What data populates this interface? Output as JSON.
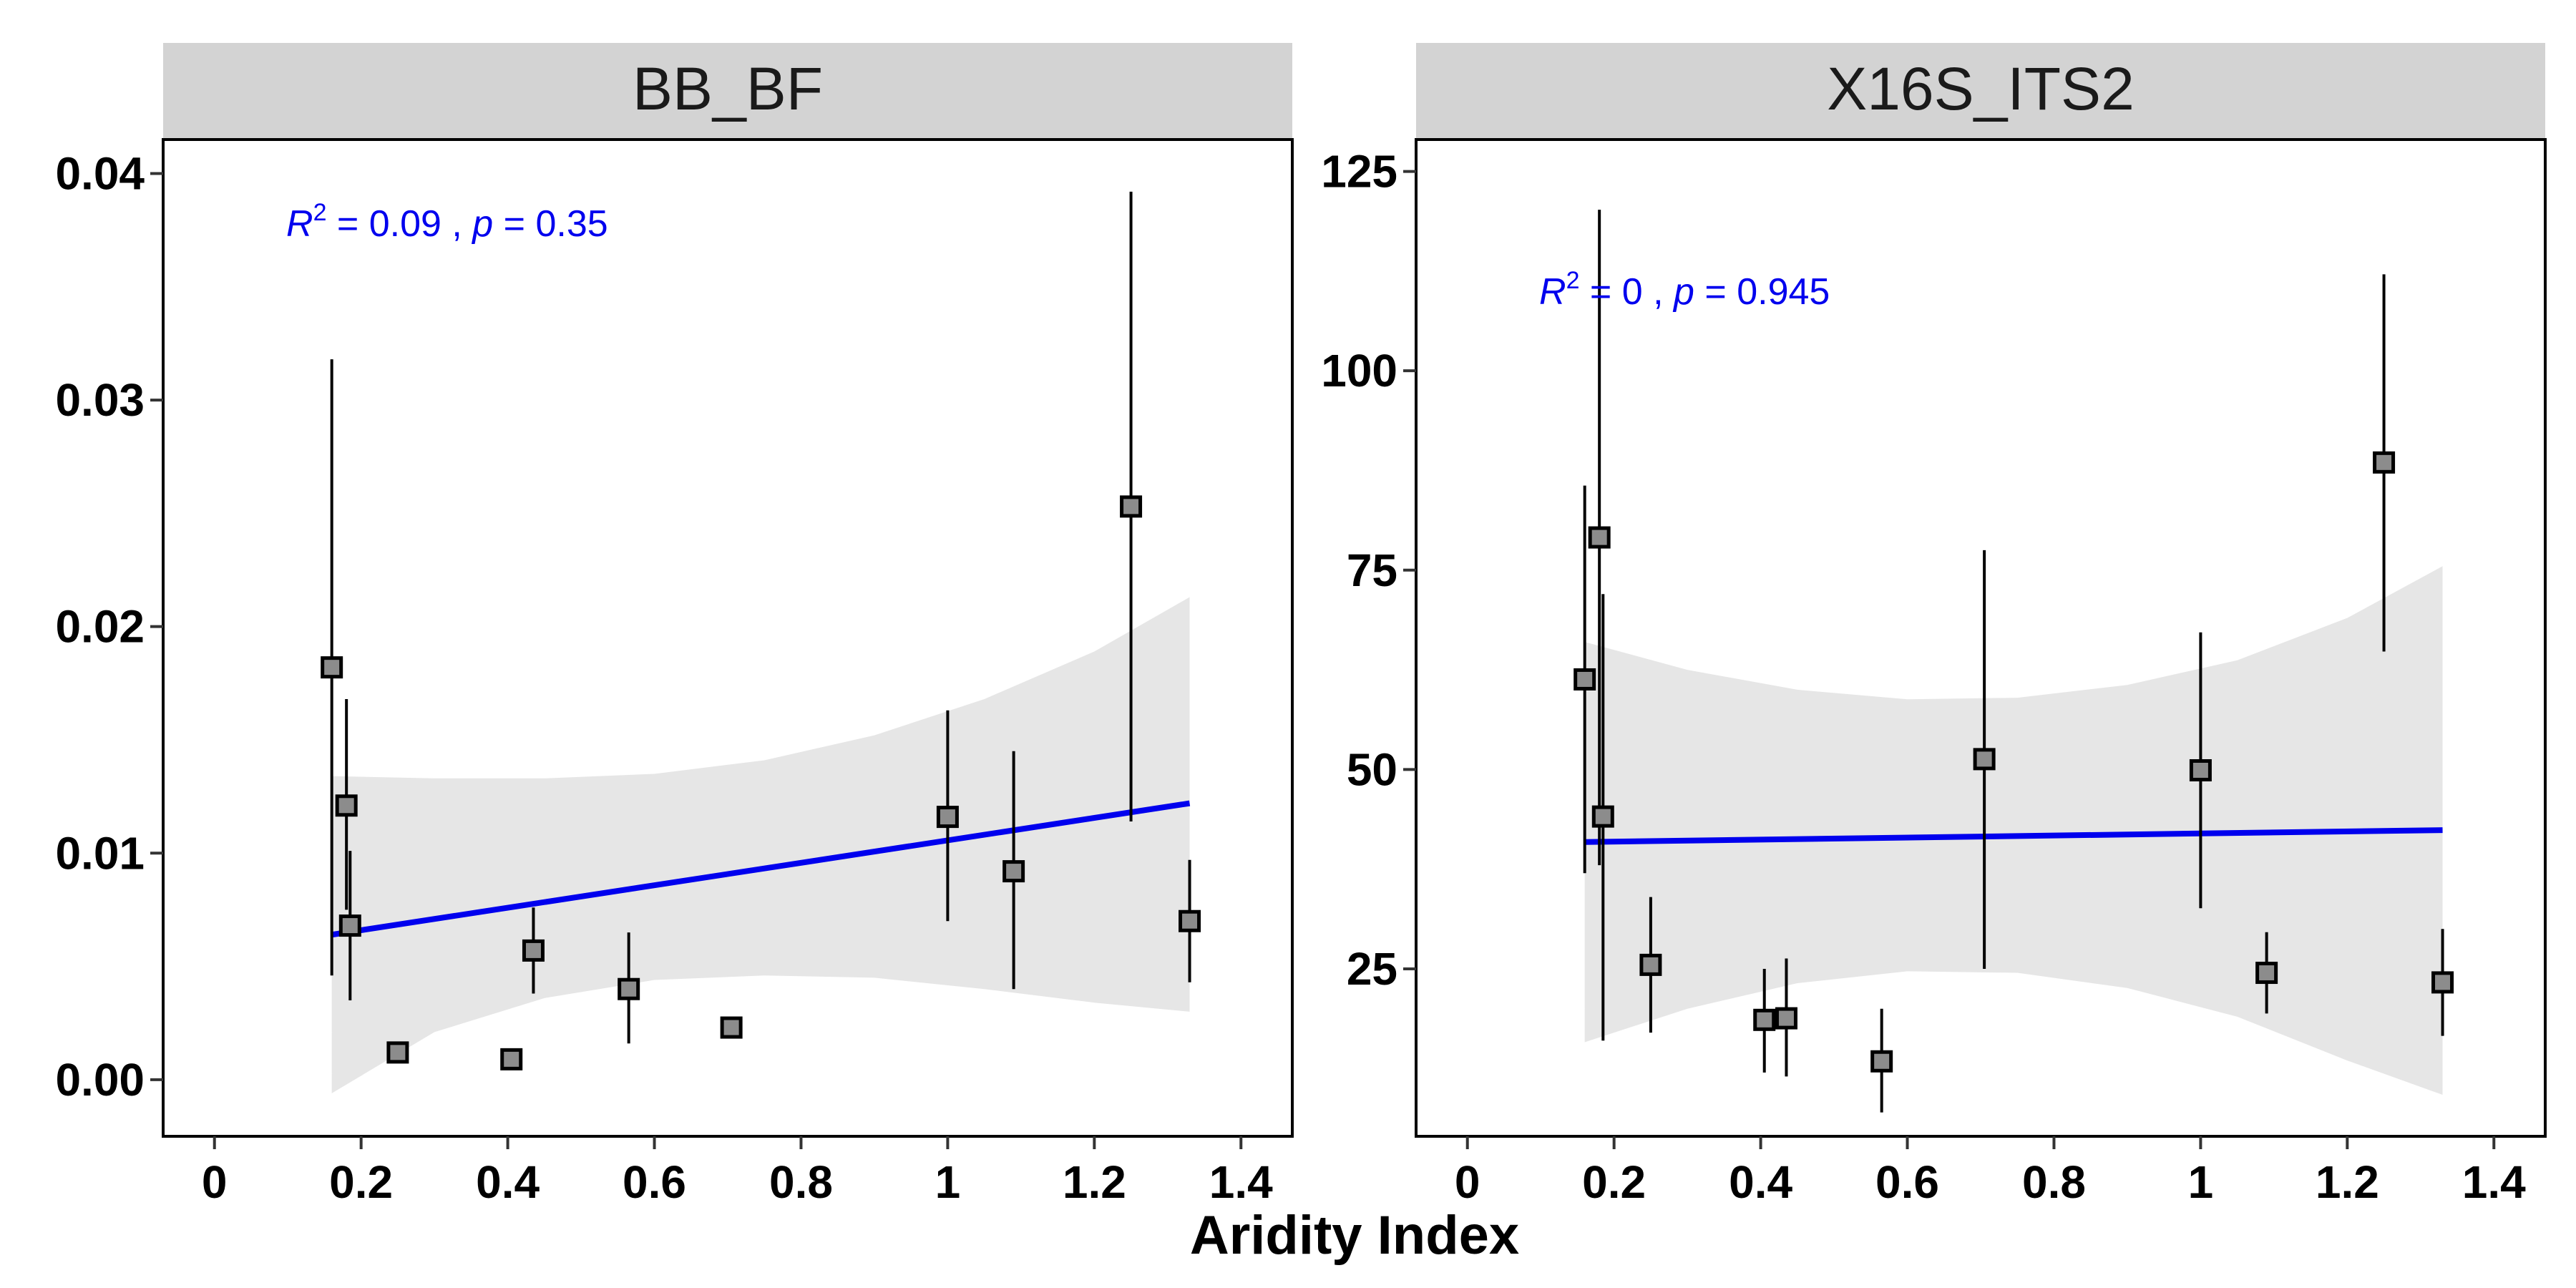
{
  "figure": {
    "xlabel": "Aridity Index",
    "fit_color": "#0000ee",
    "band_color": "#e6e6e6",
    "strip_color": "#d3d3d3",
    "point_fill": "#8c8c8c"
  },
  "chart_data": [
    {
      "type": "scatter",
      "panel": "BB_BF",
      "xlim": [
        -0.07,
        1.47
      ],
      "ylim": [
        -0.0025,
        0.0415
      ],
      "xticks": [
        0,
        0.2,
        0.4,
        0.6,
        0.8,
        1,
        1.2,
        1.4
      ],
      "xtick_labels": [
        "0",
        "0.2",
        "0.4",
        "0.6",
        "0.8",
        "1",
        "1.2",
        "1.4"
      ],
      "yticks": [
        0.0,
        0.01,
        0.02,
        0.03,
        0.04
      ],
      "ytick_labels": [
        "0.00",
        "0.01",
        "0.02",
        "0.03",
        "0.04"
      ],
      "annotation": {
        "r2_label": "R",
        "sup": "2",
        "r2_value": " = 0.09 , ",
        "p_label": "p",
        "p_value": " = 0.35"
      },
      "points": [
        {
          "x": 0.16,
          "y": 0.0182,
          "lo": 0.0046,
          "hi": 0.0318
        },
        {
          "x": 0.18,
          "y": 0.0121,
          "lo": 0.0075,
          "hi": 0.0168
        },
        {
          "x": 0.185,
          "y": 0.0068,
          "lo": 0.0035,
          "hi": 0.0101
        },
        {
          "x": 0.25,
          "y": 0.0012,
          "lo": 0.0012,
          "hi": 0.0012
        },
        {
          "x": 0.405,
          "y": 0.0009,
          "lo": 0.0009,
          "hi": 0.0009
        },
        {
          "x": 0.435,
          "y": 0.0057,
          "lo": 0.0038,
          "hi": 0.0076
        },
        {
          "x": 0.565,
          "y": 0.004,
          "lo": 0.0016,
          "hi": 0.0065
        },
        {
          "x": 0.705,
          "y": 0.0023,
          "lo": 0.0023,
          "hi": 0.0023
        },
        {
          "x": 1.0,
          "y": 0.0116,
          "lo": 0.007,
          "hi": 0.0163
        },
        {
          "x": 1.09,
          "y": 0.0092,
          "lo": 0.004,
          "hi": 0.0145
        },
        {
          "x": 1.25,
          "y": 0.0253,
          "lo": 0.0114,
          "hi": 0.0392
        },
        {
          "x": 1.33,
          "y": 0.007,
          "lo": 0.0043,
          "hi": 0.0097
        }
      ],
      "fit": {
        "x": [
          0.16,
          1.33
        ],
        "y": [
          0.0064,
          0.0122
        ]
      },
      "band": {
        "x": [
          0.16,
          0.3,
          0.45,
          0.6,
          0.75,
          0.9,
          1.05,
          1.2,
          1.33
        ],
        "upper": [
          0.0134,
          0.0133,
          0.0133,
          0.0135,
          0.0141,
          0.0152,
          0.0168,
          0.0189,
          0.0213
        ],
        "lower": [
          -0.0006,
          0.0021,
          0.0036,
          0.0044,
          0.0046,
          0.0045,
          0.004,
          0.0034,
          0.003
        ]
      }
    },
    {
      "type": "scatter",
      "panel": "X16S_ITS2",
      "xlim": [
        -0.07,
        1.47
      ],
      "ylim": [
        4,
        129
      ],
      "xticks": [
        0,
        0.2,
        0.4,
        0.6,
        0.8,
        1,
        1.2,
        1.4
      ],
      "xtick_labels": [
        "0",
        "0.2",
        "0.4",
        "0.6",
        "0.8",
        "1",
        "1.2",
        "1.4"
      ],
      "yticks": [
        25,
        50,
        75,
        100,
        125
      ],
      "ytick_labels": [
        "25",
        "50",
        "75",
        "100",
        "125"
      ],
      "annotation": {
        "r2_label": "R",
        "sup": "2",
        "r2_value": " = 0 , ",
        "p_label": "p",
        "p_value": " = 0.945"
      },
      "points": [
        {
          "x": 0.16,
          "y": 61.3,
          "lo": 37,
          "hi": 85.6
        },
        {
          "x": 0.18,
          "y": 79.1,
          "lo": 38,
          "hi": 120.2
        },
        {
          "x": 0.185,
          "y": 44.1,
          "lo": 16,
          "hi": 72
        },
        {
          "x": 0.25,
          "y": 25.5,
          "lo": 17,
          "hi": 34
        },
        {
          "x": 0.405,
          "y": 18.6,
          "lo": 12,
          "hi": 25
        },
        {
          "x": 0.435,
          "y": 18.8,
          "lo": 11.5,
          "hi": 26.3
        },
        {
          "x": 0.565,
          "y": 13.4,
          "lo": 7,
          "hi": 20
        },
        {
          "x": 0.705,
          "y": 51.3,
          "lo": 25,
          "hi": 77.5
        },
        {
          "x": 1.0,
          "y": 49.9,
          "lo": 32.6,
          "hi": 67.2
        },
        {
          "x": 1.09,
          "y": 24.5,
          "lo": 19.4,
          "hi": 29.6
        },
        {
          "x": 1.25,
          "y": 88.5,
          "lo": 64.8,
          "hi": 112.1
        },
        {
          "x": 1.33,
          "y": 23.3,
          "lo": 16.6,
          "hi": 30
        }
      ],
      "fit": {
        "x": [
          0.16,
          1.33
        ],
        "y": [
          40.9,
          42.4
        ]
      },
      "band": {
        "x": [
          0.16,
          0.3,
          0.45,
          0.6,
          0.75,
          0.9,
          1.05,
          1.2,
          1.33
        ],
        "upper": [
          66.0,
          62.5,
          60.0,
          58.8,
          59.0,
          60.6,
          63.7,
          69.0,
          75.5
        ],
        "lower": [
          15.8,
          20.0,
          23.2,
          24.7,
          24.5,
          22.6,
          19.0,
          13.5,
          9.2
        ]
      }
    }
  ]
}
